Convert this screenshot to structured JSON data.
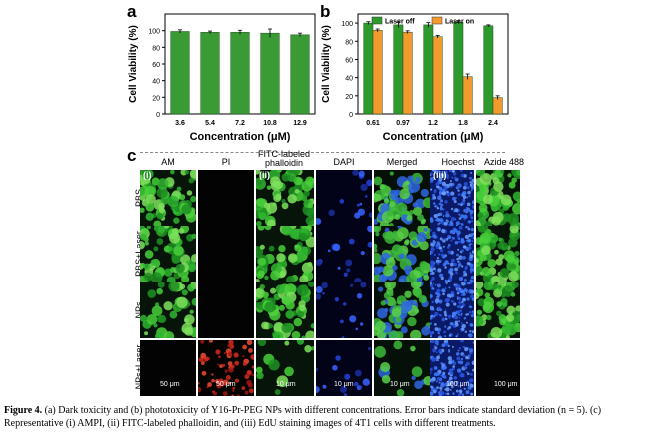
{
  "panel_letters": {
    "a": "a",
    "b": "b",
    "c": "c"
  },
  "chart_data": [
    {
      "type": "bar",
      "panel": "a",
      "categories": [
        "3.6",
        "5.4",
        "7.2",
        "10.8",
        "12.9"
      ],
      "values": [
        99,
        98,
        98,
        97,
        95
      ],
      "errors": [
        2,
        1.5,
        2.5,
        5,
        2
      ],
      "xlabel": "Concentration (μM)",
      "ylabel": "Cell Viability (%)",
      "ylim": [
        0,
        120
      ],
      "yticks": [
        "0",
        "20",
        "40",
        "60",
        "80",
        "100"
      ],
      "color": "#3a9b35"
    },
    {
      "type": "bar",
      "panel": "b",
      "categories": [
        "0.61",
        "0.97",
        "1.2",
        "1.8",
        "2.4"
      ],
      "series": [
        {
          "name": "Laser off",
          "values": [
            100,
            98,
            98,
            101,
            97
          ],
          "errors": [
            1.5,
            3,
            2.5,
            1.5,
            1
          ],
          "color": "#2e9a2e"
        },
        {
          "name": "Laser on",
          "values": [
            92,
            90,
            85,
            41,
            18
          ],
          "errors": [
            1.5,
            1.5,
            1.5,
            3,
            2
          ],
          "color": "#f39a2f"
        }
      ],
      "xlabel": "Concentration (μM)",
      "ylabel": "Cell Viability (%)",
      "ylim": [
        0,
        110
      ],
      "yticks": [
        "0",
        "20",
        "40",
        "60",
        "80",
        "100"
      ],
      "legend_position": "top"
    }
  ],
  "microscopy": {
    "columns": [
      "AM",
      "PI",
      "FITC-labeled phalloidin",
      "DAPI",
      "Merged",
      "Hoechst",
      "Azide 488"
    ],
    "rows": [
      "PBS",
      "PBS+Laser",
      "NPs",
      "NPs+Laser"
    ],
    "sublabels": {
      "i": "(i)",
      "ii": "(ii)",
      "iii": "(iii)"
    },
    "scale_labels": {
      "AM": "50 μm",
      "PI": "50 μm",
      "FITC": "10 μm",
      "DAPI": "10 μm",
      "Merged": "10 μm",
      "Hoechst": "100 μm",
      "Azide": "100 μm"
    }
  },
  "caption": {
    "label": "Figure 4.",
    "text": " (a) Dark toxicity and (b) phototoxicity of Y16-Pr-PEG NPs with different concentrations. Error bars indicate standard deviation (n = 5). (c) Representative (i) AMPI, (ii) FITC-labeled phalloidin, and (iii) EdU staining images of 4T1 cells with different treatments."
  }
}
